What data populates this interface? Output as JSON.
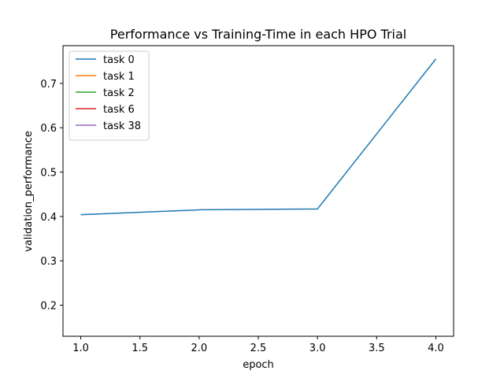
{
  "chart_data": {
    "type": "line",
    "title": "Performance vs Training-Time in each HPO Trial",
    "xlabel": "epoch",
    "ylabel": "validation_performance",
    "xlim": [
      0.85,
      4.15
    ],
    "ylim": [
      0.13,
      0.785
    ],
    "xticks": [
      1.0,
      1.5,
      2.0,
      2.5,
      3.0,
      3.5,
      4.0
    ],
    "xtick_labels": [
      "1.0",
      "1.5",
      "2.0",
      "2.5",
      "3.0",
      "3.5",
      "4.0"
    ],
    "yticks": [
      0.2,
      0.3,
      0.4,
      0.5,
      0.6,
      0.7
    ],
    "ytick_labels": [
      "0.2",
      "0.3",
      "0.4",
      "0.5",
      "0.6",
      "0.7"
    ],
    "grid": false,
    "legend_position": "top-left",
    "series": [
      {
        "name": "task 0",
        "color": "#1f77b4",
        "x": [
          1,
          2,
          3,
          4
        ],
        "values": [
          0.404,
          0.415,
          0.417,
          0.755
        ]
      },
      {
        "name": "task 1",
        "color": "#ff7f0e",
        "x": [],
        "values": []
      },
      {
        "name": "task 2",
        "color": "#2ca02c",
        "x": [],
        "values": []
      },
      {
        "name": "task 6",
        "color": "#d62728",
        "x": [],
        "values": []
      },
      {
        "name": "task 38",
        "color": "#9467bd",
        "x": [],
        "values": []
      }
    ]
  }
}
